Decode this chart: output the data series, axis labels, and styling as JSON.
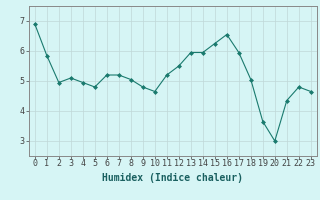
{
  "x": [
    0,
    1,
    2,
    3,
    4,
    5,
    6,
    7,
    8,
    9,
    10,
    11,
    12,
    13,
    14,
    15,
    16,
    17,
    18,
    19,
    20,
    21,
    22,
    23
  ],
  "y": [
    6.9,
    5.85,
    4.95,
    5.1,
    4.95,
    4.8,
    5.2,
    5.2,
    5.05,
    4.8,
    4.65,
    5.2,
    5.5,
    5.95,
    5.95,
    6.25,
    6.55,
    5.95,
    5.05,
    3.65,
    3.0,
    4.35,
    4.8,
    4.65
  ],
  "line_color": "#1a7a6e",
  "marker": "D",
  "marker_size": 2,
  "bg_color": "#d6f5f5",
  "grid_color": "#c0d8d8",
  "axis_color": "#555555",
  "xlabel": "Humidex (Indice chaleur)",
  "xlabel_fontsize": 7,
  "tick_fontsize": 6,
  "ylim": [
    2.5,
    7.5
  ],
  "xlim": [
    -0.5,
    23.5
  ],
  "yticks": [
    3,
    4,
    5,
    6,
    7
  ],
  "xticks": [
    0,
    1,
    2,
    3,
    4,
    5,
    6,
    7,
    8,
    9,
    10,
    11,
    12,
    13,
    14,
    15,
    16,
    17,
    18,
    19,
    20,
    21,
    22,
    23
  ]
}
